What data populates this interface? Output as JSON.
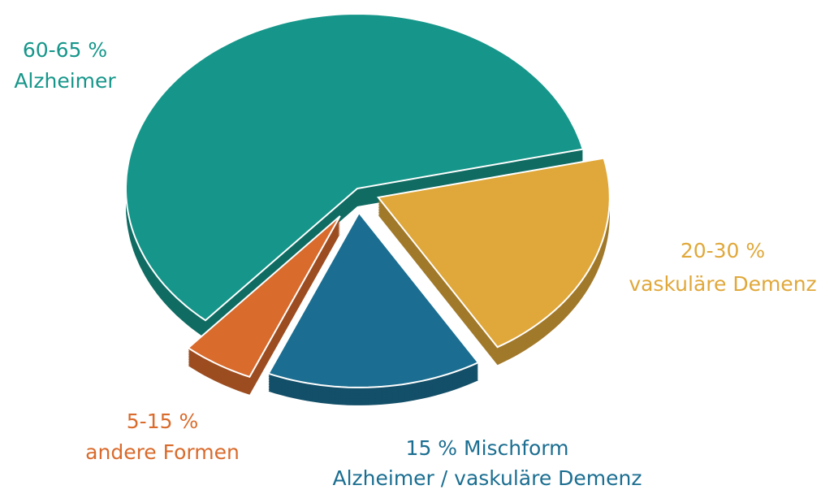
{
  "chart_data": {
    "type": "pie",
    "categories": [
      "Alzheimer",
      "vaskuläre Demenz",
      "Alzheimer / vaskuläre Demenz",
      "andere Formen"
    ],
    "values": [
      60,
      20,
      15,
      5
    ],
    "value_labels": [
      "60-65 %",
      "20-30 %",
      "15 % Mischform",
      "5-15 %"
    ],
    "colors": [
      "#16968a",
      "#e0a83a",
      "#1b6e91",
      "#d96b2c"
    ]
  }
}
